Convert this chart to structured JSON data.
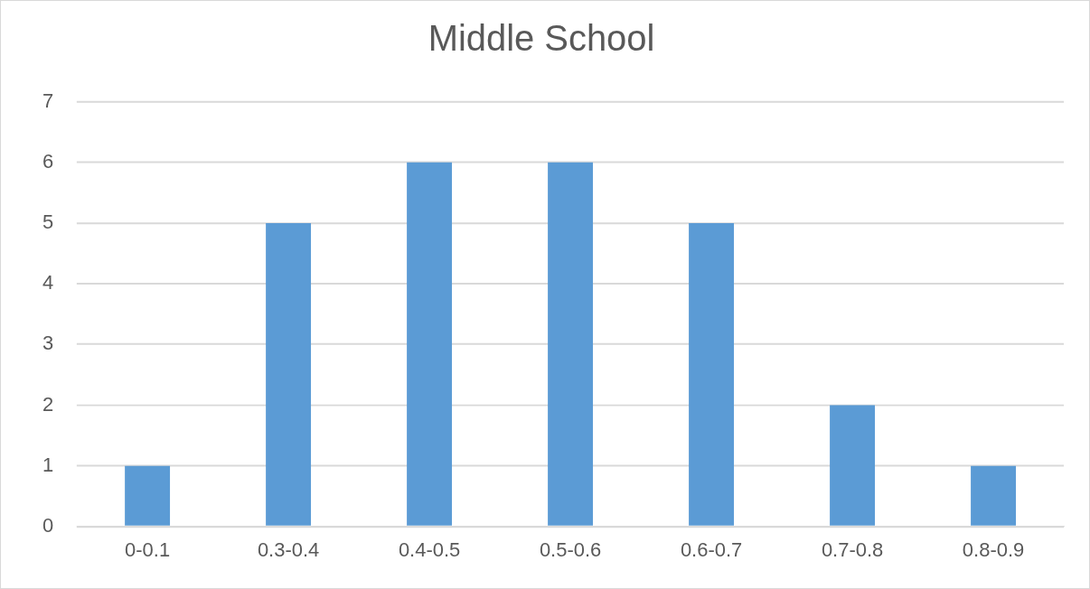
{
  "chart_data": {
    "type": "bar",
    "title": "Middle School",
    "categories": [
      "0-0.1",
      "0.3-0.4",
      "0.4-0.5",
      "0.5-0.6",
      "0.6-0.7",
      "0.7-0.8",
      "0.8-0.9"
    ],
    "values": [
      1,
      5,
      6,
      6,
      5,
      2,
      1
    ],
    "color": "#5b9bd5",
    "ylim": [
      0,
      7
    ],
    "yticks": [
      0,
      1,
      2,
      3,
      4,
      5,
      6,
      7
    ],
    "grid": "y",
    "legend": false
  }
}
